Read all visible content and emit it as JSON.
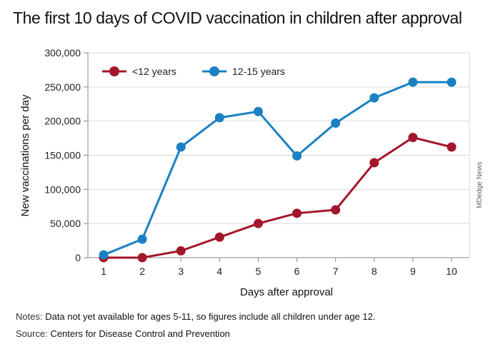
{
  "title": "The first 10 days of COVID vaccination in children after approval",
  "notes_label": "Notes:",
  "notes_text": "Data not yet available for ages 5-11, so figures include all children under age 12.",
  "source_label": "Source:",
  "source_text": "Centers for Disease Control and Prevention",
  "credit": "MDedge News",
  "chart_data": {
    "type": "line",
    "xlabel": "Days after approval",
    "ylabel": "New vaccinations per day",
    "x": [
      1,
      2,
      3,
      4,
      5,
      6,
      7,
      8,
      9,
      10
    ],
    "ylim": [
      0,
      300000
    ],
    "yticks": [
      0,
      50000,
      100000,
      150000,
      200000,
      250000,
      300000
    ],
    "ytick_labels": [
      "0",
      "50,000",
      "100,000",
      "150,000",
      "200,000",
      "250,000",
      "300,000"
    ],
    "grid": true,
    "legend_position": "top-left",
    "series": [
      {
        "name": "<12 years",
        "color": "#a3162b",
        "values": [
          0,
          0,
          10000,
          30000,
          50000,
          65000,
          70000,
          139000,
          176000,
          162000
        ]
      },
      {
        "name": "12-15 years",
        "color": "#1a81c2",
        "values": [
          4000,
          27000,
          162000,
          205000,
          214000,
          149000,
          197000,
          234000,
          257000,
          257000
        ]
      }
    ]
  }
}
